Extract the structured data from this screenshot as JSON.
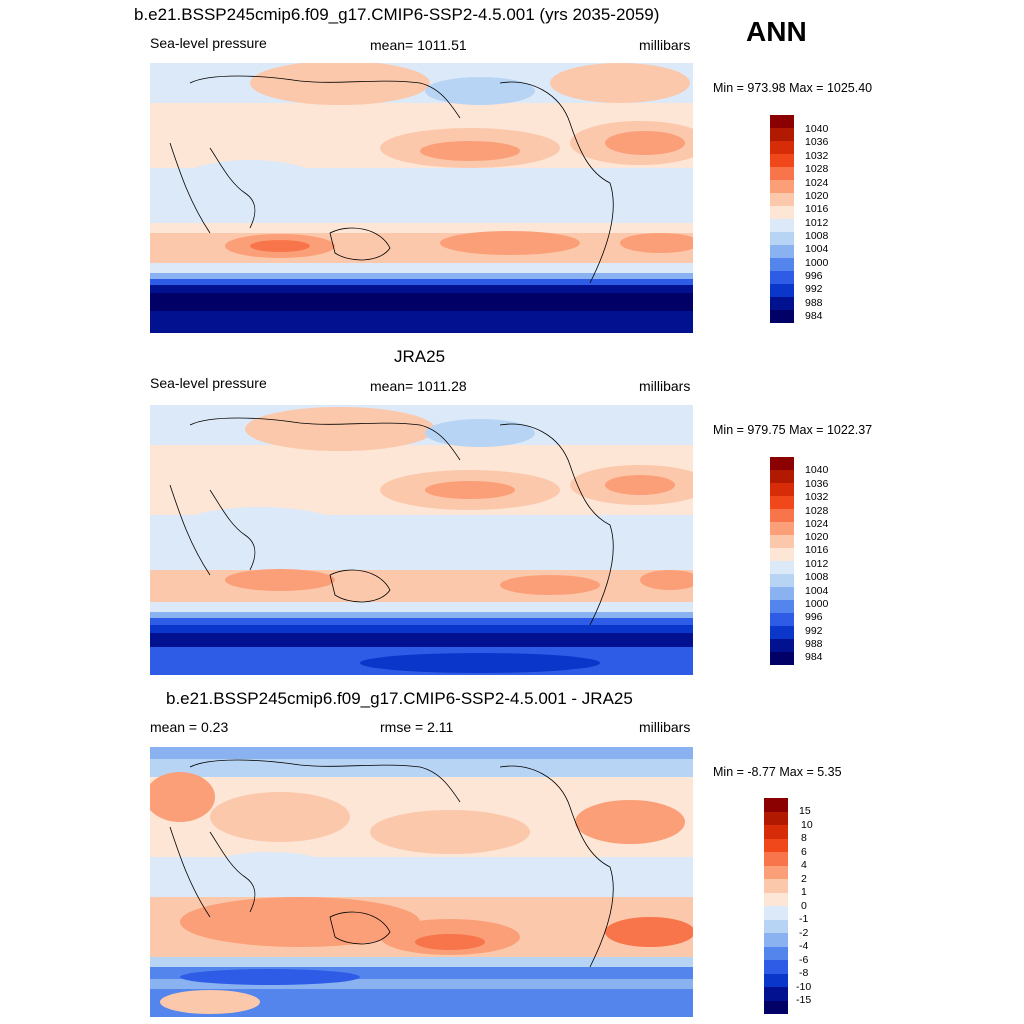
{
  "season": "ANN",
  "chart_data": [
    {
      "type": "heatmap",
      "title": "b.e21.BSSP245cmip6.f09_g17.CMIP6-SSP2-4.5.001 (yrs 2035-2059)",
      "left_label": "Sea-level pressure",
      "center_label": "mean= 1011.51",
      "units": "millibars",
      "min_max": "Min = 973.98 Max = 1025.40",
      "levels": [
        "1040",
        "1036",
        "1032",
        "1028",
        "1024",
        "1020",
        "1016",
        "1012",
        "1008",
        "1004",
        "1000",
        "996",
        "992",
        "988",
        "984"
      ],
      "colors": [
        "#8b0000",
        "#b21a00",
        "#d62c08",
        "#f0471b",
        "#f8744a",
        "#fb9f78",
        "#fcc8ab",
        "#fde6d6",
        "#dce9f8",
        "#b8d4f4",
        "#8ab2f0",
        "#5485ec",
        "#2e5ce6",
        "#0a36c9",
        "#02118f",
        "#000066"
      ]
    },
    {
      "type": "heatmap",
      "title": "JRA25",
      "left_label": "Sea-level pressure",
      "center_label": "mean= 1011.28",
      "units": "millibars",
      "min_max": "Min = 979.75 Max = 1022.37",
      "levels": [
        "1040",
        "1036",
        "1032",
        "1028",
        "1024",
        "1020",
        "1016",
        "1012",
        "1008",
        "1004",
        "1000",
        "996",
        "992",
        "988",
        "984"
      ],
      "colors": [
        "#8b0000",
        "#b21a00",
        "#d62c08",
        "#f0471b",
        "#f8744a",
        "#fb9f78",
        "#fcc8ab",
        "#fde6d6",
        "#dce9f8",
        "#b8d4f4",
        "#8ab2f0",
        "#5485ec",
        "#2e5ce6",
        "#0a36c9",
        "#02118f",
        "#000066"
      ]
    },
    {
      "type": "heatmap",
      "title": "b.e21.BSSP245cmip6.f09_g17.CMIP6-SSP2-4.5.001 - JRA25",
      "left_label": "mean =   0.23",
      "center_label": "rmse =   2.11",
      "units": "millibars",
      "min_max": "Min =  -8.77 Max =   5.35",
      "levels": [
        "15",
        "10",
        "8",
        "6",
        "4",
        "2",
        "1",
        "0",
        "-1",
        "-2",
        "-4",
        "-6",
        "-8",
        "-10",
        "-15"
      ],
      "colors": [
        "#8b0000",
        "#b21a00",
        "#d62c08",
        "#f0471b",
        "#f8744a",
        "#fb9f78",
        "#fcc8ab",
        "#fde6d6",
        "#dce9f8",
        "#b8d4f4",
        "#8ab2f0",
        "#5485ec",
        "#2e5ce6",
        "#0a36c9",
        "#02118f",
        "#000066"
      ]
    }
  ]
}
